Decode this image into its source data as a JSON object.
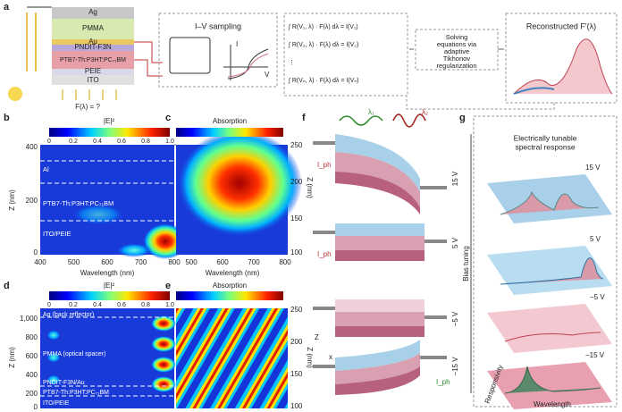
{
  "a": {
    "label": "a",
    "layers": [
      "Ag",
      "PMMA",
      "Au",
      "PNDIT-F3N",
      "PTB7-Th:P3HT:PC₇₁BM",
      "PEIE",
      "ITO"
    ],
    "f_lambda": "F(λ) = ?",
    "sampling_title": "I–V sampling",
    "iv_axes": [
      "I",
      "V"
    ],
    "equations": [
      "∫ R(V₁, λ) · F(λ) dλ = I(V₁)",
      "∫ R(V₂, λ) · F(λ) dλ = I(V₂)",
      "⋮",
      "∫ R(Vₙ, λ) · F(λ) dλ = I(Vₙ)"
    ],
    "solve": [
      "Solving",
      "equations via",
      "adaptive",
      "Tikhonov",
      "regularization"
    ],
    "reconstructed": "Reconstructed F′(λ)"
  },
  "b": {
    "label": "b",
    "colorbar_title": "|E|²",
    "colorbar_ticks": [
      "0",
      "0.2",
      "0.4",
      "0.6",
      "0.8",
      "1.0"
    ],
    "y_label": "Z (nm)",
    "y_ticks": [
      "400",
      "200",
      "0"
    ],
    "x_label": "Wavelength (nm)",
    "x_ticks": [
      "400",
      "500",
      "600",
      "700",
      "800"
    ],
    "regions": [
      "Al",
      "PTB7-Th:P3HT:PC₇₁BM",
      "ITO/PEIE"
    ]
  },
  "c": {
    "label": "c",
    "colorbar_title": "Absorption",
    "x_label": "Wavelength (nm)",
    "x_ticks": [
      "500",
      "600",
      "700",
      "800"
    ],
    "y_label": "Z (nm)",
    "y_ticks": [
      "250",
      "200",
      "150",
      "100"
    ]
  },
  "d": {
    "label": "d",
    "colorbar_title": "|E|²",
    "colorbar_ticks": [
      "0",
      "0.2",
      "0.4",
      "0.6",
      "0.8",
      "1.0"
    ],
    "y_label": "Z (nm)",
    "y_ticks": [
      "1,000",
      "800",
      "600",
      "400",
      "200",
      "0"
    ],
    "regions": [
      "Ag (back reflector)",
      "PMMA (optical spacer)",
      "PNDIT-F3N/Au",
      "PTB7-Th:P3HT:PC₇₁BM",
      "ITO/PEIE"
    ]
  },
  "e": {
    "label": "e",
    "colorbar_title": "Absorption",
    "y_label": "Z (nm)",
    "y_ticks": [
      "250",
      "200",
      "150",
      "100"
    ]
  },
  "f": {
    "label": "f",
    "lambdas": [
      "λ₁",
      "λ₂"
    ],
    "voltages": [
      "15 V",
      "5 V",
      "−5 V",
      "−15 V"
    ],
    "photocurrent": "I_ph",
    "z_axis": "Z",
    "x_axis": "x",
    "bias": "Bias tuning"
  },
  "g": {
    "label": "g",
    "title": [
      "Electrically tunable",
      "spectral response"
    ],
    "voltages": [
      "15 V",
      "5 V",
      "−5 V",
      "−15 V"
    ],
    "y_label": "Responsivity",
    "x_label": "Wavelength"
  }
}
